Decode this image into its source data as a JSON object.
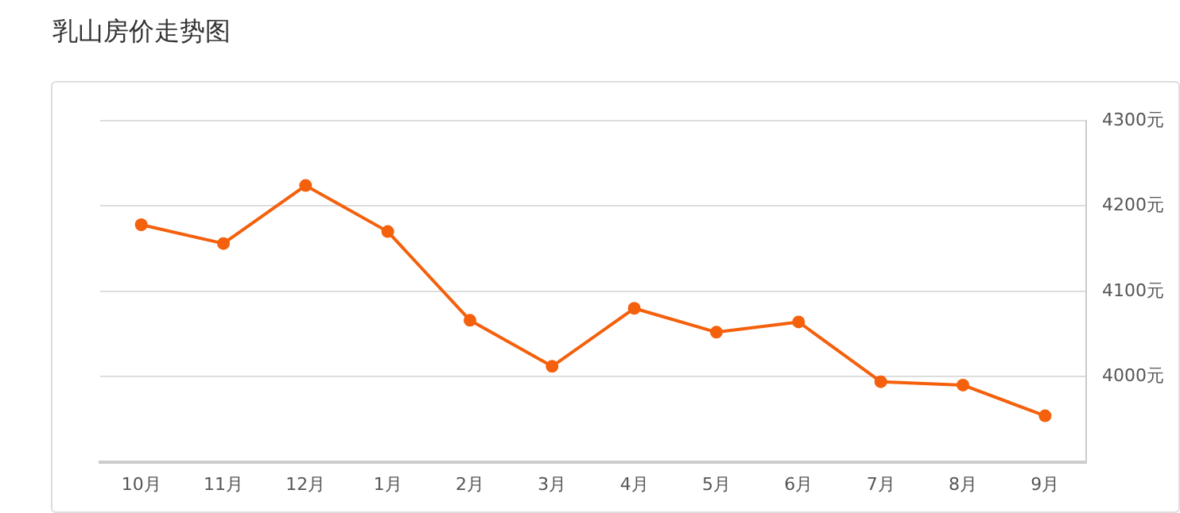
{
  "chart_data": {
    "type": "line",
    "title": "乳山房价走势图",
    "categories": [
      "10月",
      "11月",
      "12月",
      "1月",
      "2月",
      "3月",
      "4月",
      "5月",
      "6月",
      "7月",
      "8月",
      "9月"
    ],
    "series": [
      {
        "color": "#f4600c",
        "values": [
          4178,
          4156,
          4224,
          4170,
          4066,
          4012,
          4080,
          4052,
          4064,
          3994,
          3990,
          3954
        ]
      }
    ],
    "ylim": [
      3900,
      4300
    ],
    "yticks": [
      {
        "value": 4000,
        "label": "4000元"
      },
      {
        "value": 4100,
        "label": "4100元"
      },
      {
        "value": 4200,
        "label": "4200元"
      },
      {
        "value": 4300,
        "label": "4300元"
      }
    ],
    "grid": "y",
    "legend": false,
    "marker": "circle",
    "line_style": "solid"
  }
}
